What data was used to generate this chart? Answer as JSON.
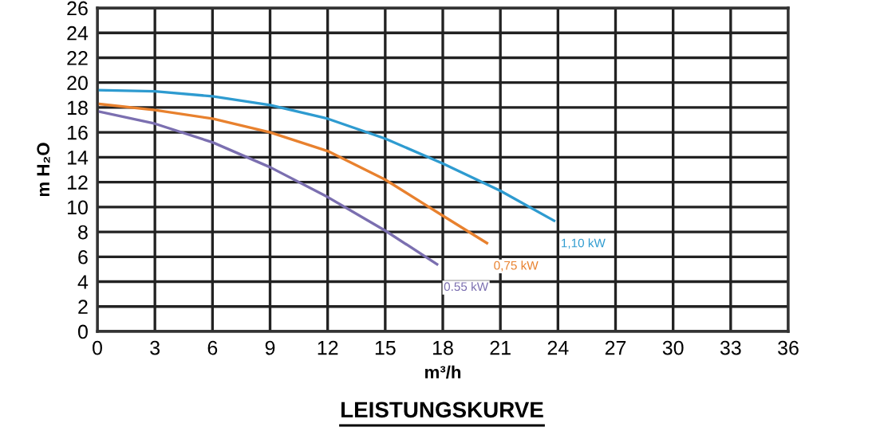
{
  "chart_data": {
    "type": "line",
    "title": "LEISTUNGSKURVE",
    "xlabel": "m³/h",
    "ylabel": "m H₂O",
    "xlim": [
      0,
      36
    ],
    "ylim": [
      0,
      26
    ],
    "xticks": [
      0,
      3,
      6,
      9,
      12,
      15,
      18,
      21,
      24,
      27,
      30,
      33,
      36
    ],
    "yticks": [
      0,
      2,
      4,
      6,
      8,
      10,
      12,
      14,
      16,
      18,
      20,
      22,
      24,
      26
    ],
    "grid": true,
    "legend": false,
    "marker": "none",
    "line_style": "solid",
    "series": [
      {
        "name": "1,10 kW",
        "color": "#2e9bd0",
        "x": [
          0,
          3,
          6,
          9,
          12,
          15,
          18,
          21,
          23.8
        ],
        "values": [
          19.4,
          19.3,
          18.9,
          18.2,
          17.1,
          15.5,
          13.5,
          11.3,
          8.9
        ]
      },
      {
        "name": "0,75 kW",
        "color": "#e8812e",
        "x": [
          0,
          3,
          6,
          9,
          12,
          15,
          18,
          20.3
        ],
        "values": [
          18.3,
          17.8,
          17.1,
          16.0,
          14.5,
          12.2,
          9.3,
          7.1
        ]
      },
      {
        "name": "0.55 kW",
        "color": "#7b6fb0",
        "x": [
          0,
          3,
          6,
          9,
          12,
          15,
          17.7
        ],
        "values": [
          17.7,
          16.7,
          15.2,
          13.2,
          10.8,
          8.1,
          5.4
        ]
      }
    ]
  }
}
